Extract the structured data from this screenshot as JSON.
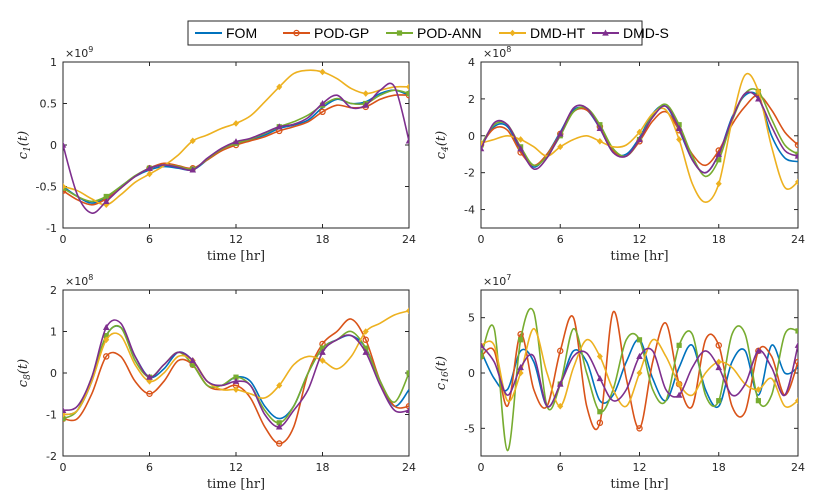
{
  "legend": {
    "entries": [
      {
        "name": "FOM",
        "color": "#0072BD",
        "marker": "none"
      },
      {
        "name": "POD-GP",
        "color": "#D95319",
        "marker": "circle"
      },
      {
        "name": "POD-ANN",
        "color": "#77AC30",
        "marker": "square"
      },
      {
        "name": "DMD-HT",
        "color": "#EDB120",
        "marker": "diamond"
      },
      {
        "name": "DMD-S",
        "color": "#7E2F8E",
        "marker": "triangle"
      }
    ]
  },
  "chart_data": [
    {
      "type": "line",
      "ylabel": "c1(t)",
      "ylabel_main": "c",
      "ylabel_sub": "1",
      "ylabel_tail": "(t)",
      "xlabel": "time [hr]",
      "exponent_base": "×10",
      "exponent_power": "9",
      "xlim": [
        0,
        24
      ],
      "ylim": [
        -1,
        1
      ],
      "xticks": [
        "0",
        "6",
        "12",
        "18",
        "24"
      ],
      "xtick_values": [
        0,
        6,
        12,
        18,
        24
      ],
      "yticks": [
        "-1",
        "-0.5",
        "0",
        "0.5",
        "1"
      ],
      "ytick_values": [
        -1,
        -0.5,
        0,
        0.5,
        1
      ],
      "x": [
        0,
        1,
        2,
        3,
        4,
        5,
        6,
        7,
        8,
        9,
        10,
        11,
        12,
        13,
        14,
        15,
        16,
        17,
        18,
        19,
        20,
        21,
        22,
        23,
        24
      ],
      "series": [
        {
          "name": "FOM",
          "values": [
            -0.5,
            -0.62,
            -0.7,
            -0.63,
            -0.5,
            -0.38,
            -0.3,
            -0.26,
            -0.28,
            -0.3,
            -0.18,
            -0.05,
            0.02,
            0.06,
            0.12,
            0.2,
            0.24,
            0.3,
            0.45,
            0.55,
            0.5,
            0.52,
            0.62,
            0.66,
            0.6
          ]
        },
        {
          "name": "POD-GP",
          "values": [
            -0.55,
            -0.66,
            -0.72,
            -0.65,
            -0.52,
            -0.38,
            -0.28,
            -0.22,
            -0.25,
            -0.28,
            -0.18,
            -0.07,
            0.0,
            0.05,
            0.1,
            0.17,
            0.22,
            0.28,
            0.4,
            0.48,
            0.45,
            0.46,
            0.55,
            0.6,
            0.6
          ]
        },
        {
          "name": "POD-ANN",
          "values": [
            -0.52,
            -0.62,
            -0.68,
            -0.62,
            -0.5,
            -0.37,
            -0.28,
            -0.24,
            -0.26,
            -0.29,
            -0.17,
            -0.05,
            0.02,
            0.07,
            0.14,
            0.22,
            0.28,
            0.36,
            0.48,
            0.56,
            0.5,
            0.5,
            0.6,
            0.66,
            0.62
          ]
        },
        {
          "name": "DMD-HT",
          "values": [
            -0.5,
            -0.55,
            -0.65,
            -0.72,
            -0.6,
            -0.45,
            -0.35,
            -0.25,
            -0.12,
            0.05,
            0.12,
            0.2,
            0.26,
            0.35,
            0.52,
            0.7,
            0.86,
            0.9,
            0.88,
            0.8,
            0.68,
            0.62,
            0.66,
            0.7,
            0.7
          ]
        },
        {
          "name": "DMD-S",
          "values": [
            0.0,
            -0.6,
            -0.82,
            -0.68,
            -0.52,
            -0.38,
            -0.28,
            -0.24,
            -0.27,
            -0.3,
            -0.16,
            -0.04,
            0.04,
            0.08,
            0.15,
            0.22,
            0.25,
            0.33,
            0.5,
            0.6,
            0.45,
            0.48,
            0.66,
            0.7,
            0.05
          ]
        }
      ]
    },
    {
      "type": "line",
      "ylabel": "c4(t)",
      "ylabel_main": "c",
      "ylabel_sub": "4",
      "ylabel_tail": "(t)",
      "xlabel": "time [hr]",
      "exponent_base": "×10",
      "exponent_power": "8",
      "xlim": [
        0,
        24
      ],
      "ylim": [
        -5,
        4
      ],
      "xticks": [
        "0",
        "6",
        "12",
        "18",
        "24"
      ],
      "xtick_values": [
        0,
        6,
        12,
        18,
        24
      ],
      "yticks": [
        "-4",
        "-2",
        "0",
        "2",
        "4"
      ],
      "ytick_values": [
        -4,
        -2,
        0,
        2,
        4
      ],
      "x": [
        0,
        1,
        2,
        3,
        4,
        5,
        6,
        7,
        8,
        9,
        10,
        11,
        12,
        13,
        14,
        15,
        16,
        17,
        18,
        19,
        20,
        21,
        22,
        23,
        24
      ],
      "series": [
        {
          "name": "FOM",
          "values": [
            -0.6,
            0.5,
            0.5,
            -0.8,
            -1.7,
            -1.0,
            0.2,
            1.4,
            1.4,
            0.4,
            -0.9,
            -1.0,
            -0.1,
            1.2,
            1.6,
            0.3,
            -1.3,
            -2.0,
            -1.0,
            1.0,
            2.2,
            2.1,
            0.0,
            -1.2,
            -1.4
          ]
        },
        {
          "name": "POD-GP",
          "values": [
            -0.5,
            0.4,
            0.3,
            -0.9,
            -1.6,
            -1.0,
            0.1,
            1.3,
            1.4,
            0.5,
            -0.8,
            -1.1,
            -0.3,
            0.8,
            1.3,
            0.3,
            -1.0,
            -1.6,
            -0.8,
            0.6,
            1.6,
            2.2,
            1.4,
            0.2,
            -0.5
          ]
        },
        {
          "name": "POD-ANN",
          "values": [
            -0.5,
            0.6,
            0.6,
            -0.6,
            -1.6,
            -1.1,
            0.0,
            1.3,
            1.5,
            0.6,
            -0.7,
            -1.1,
            -0.2,
            1.1,
            1.7,
            0.6,
            -1.1,
            -2.2,
            -1.3,
            0.8,
            2.3,
            2.4,
            0.9,
            -0.5,
            -1.0
          ]
        },
        {
          "name": "DMD-HT",
          "values": [
            -0.4,
            -0.2,
            0.0,
            -0.2,
            -0.6,
            -1.1,
            -0.6,
            -0.2,
            0.0,
            -0.3,
            -0.6,
            -0.5,
            0.2,
            1.2,
            1.4,
            -0.2,
            -2.6,
            -3.6,
            -2.6,
            0.8,
            3.3,
            2.4,
            -0.6,
            -2.8,
            -2.5
          ]
        },
        {
          "name": "DMD-S",
          "values": [
            -0.7,
            0.7,
            0.6,
            -0.7,
            -1.8,
            -1.2,
            0.1,
            1.5,
            1.5,
            0.4,
            -0.9,
            -1.1,
            -0.2,
            1.0,
            1.6,
            0.4,
            -1.3,
            -2.0,
            -1.0,
            0.9,
            2.3,
            2.0,
            0.5,
            -0.8,
            -1.1
          ]
        }
      ]
    },
    {
      "type": "line",
      "ylabel": "c8(t)",
      "ylabel_main": "c",
      "ylabel_sub": "8",
      "ylabel_tail": "(t)",
      "xlabel": "time [hr]",
      "exponent_base": "×10",
      "exponent_power": "8",
      "xlim": [
        0,
        24
      ],
      "ylim": [
        -2,
        2
      ],
      "xticks": [
        "0",
        "6",
        "12",
        "18",
        "24"
      ],
      "xtick_values": [
        0,
        6,
        12,
        18,
        24
      ],
      "yticks": [
        "-2",
        "-1",
        "0",
        "1",
        "2"
      ],
      "ytick_values": [
        -2,
        -1,
        0,
        1,
        2
      ],
      "x": [
        0,
        1,
        2,
        3,
        4,
        5,
        6,
        7,
        8,
        9,
        10,
        11,
        12,
        13,
        14,
        15,
        16,
        17,
        18,
        19,
        20,
        21,
        22,
        23,
        24
      ],
      "series": [
        {
          "name": "FOM",
          "values": [
            -1.0,
            -0.9,
            -0.2,
            0.9,
            1.1,
            0.4,
            -0.1,
            0.1,
            0.5,
            0.3,
            -0.2,
            -0.3,
            -0.1,
            -0.2,
            -0.8,
            -1.1,
            -0.8,
            0.0,
            0.6,
            0.8,
            0.9,
            0.6,
            -0.2,
            -0.8,
            -0.4
          ]
        },
        {
          "name": "POD-GP",
          "values": [
            -1.1,
            -1.1,
            -0.5,
            0.4,
            0.4,
            -0.2,
            -0.5,
            -0.2,
            0.3,
            0.2,
            -0.3,
            -0.4,
            -0.3,
            -0.6,
            -1.3,
            -1.7,
            -1.3,
            0.0,
            0.7,
            1.0,
            1.3,
            0.8,
            -0.2,
            -0.8,
            -0.8
          ]
        },
        {
          "name": "POD-ANN",
          "values": [
            -1.1,
            -0.9,
            -0.1,
            0.9,
            1.1,
            0.3,
            -0.1,
            0.2,
            0.5,
            0.2,
            -0.3,
            -0.3,
            -0.1,
            -0.3,
            -0.9,
            -1.2,
            -0.8,
            0.0,
            0.6,
            0.8,
            1.0,
            0.6,
            -0.2,
            -0.7,
            0.0
          ]
        },
        {
          "name": "DMD-HT",
          "values": [
            -1.0,
            -0.9,
            -0.2,
            0.8,
            0.9,
            0.2,
            -0.2,
            0.0,
            0.4,
            0.3,
            -0.2,
            -0.4,
            -0.4,
            -0.5,
            -0.6,
            -0.3,
            0.2,
            0.4,
            0.3,
            0.1,
            0.4,
            1.0,
            1.2,
            1.4,
            1.5
          ]
        },
        {
          "name": "DMD-S",
          "values": [
            -0.9,
            -0.8,
            -0.1,
            1.1,
            1.2,
            0.4,
            -0.1,
            0.2,
            0.5,
            0.3,
            -0.2,
            -0.3,
            -0.2,
            -0.3,
            -1.0,
            -1.3,
            -0.9,
            -0.4,
            0.5,
            0.8,
            0.9,
            0.5,
            -0.3,
            -0.9,
            -0.9
          ]
        }
      ]
    },
    {
      "type": "line",
      "ylabel": "c16(t)",
      "ylabel_main": "c",
      "ylabel_sub": "16",
      "ylabel_tail": "(t)",
      "xlabel": "time [hr]",
      "exponent_base": "×10",
      "exponent_power": "7",
      "xlim": [
        0,
        24
      ],
      "ylim": [
        -7.5,
        7.5
      ],
      "xticks": [
        "0",
        "6",
        "12",
        "18",
        "24"
      ],
      "xtick_values": [
        0,
        6,
        12,
        18,
        24
      ],
      "yticks": [
        "-5",
        "0",
        "5"
      ],
      "ytick_values": [
        -5,
        0,
        5
      ],
      "x": [
        0,
        1,
        2,
        3,
        4,
        5,
        6,
        7,
        8,
        9,
        10,
        11,
        12,
        13,
        14,
        15,
        16,
        17,
        18,
        19,
        20,
        21,
        22,
        23,
        24
      ],
      "series": [
        {
          "name": "FOM",
          "values": [
            2.0,
            -0.5,
            -1.5,
            2.0,
            1.0,
            -3.0,
            -1.0,
            2.0,
            1.0,
            -2.5,
            -2.0,
            1.0,
            3.0,
            -0.5,
            -2.5,
            0.5,
            2.5,
            -1.5,
            -3.0,
            1.0,
            2.0,
            -2.0,
            2.5,
            0.0,
            0.5
          ]
        },
        {
          "name": "POD-GP",
          "values": [
            1.5,
            2.0,
            -3.0,
            3.5,
            -1.5,
            -3.0,
            2.0,
            5.0,
            -3.0,
            -4.5,
            5.5,
            -0.5,
            -5.0,
            1.0,
            4.5,
            -1.0,
            -3.0,
            3.0,
            2.5,
            -3.0,
            -3.5,
            2.0,
            1.5,
            -2.0,
            1.0
          ]
        },
        {
          "name": "POD-ANN",
          "values": [
            1.5,
            4.0,
            -7.0,
            3.0,
            5.5,
            -3.0,
            -1.0,
            4.0,
            0.0,
            -3.5,
            -1.5,
            3.0,
            3.0,
            -1.5,
            -2.5,
            2.5,
            3.5,
            -2.0,
            -2.5,
            3.5,
            3.5,
            -2.5,
            -2.0,
            3.5,
            3.8
          ]
        },
        {
          "name": "DMD-HT",
          "values": [
            2.5,
            2.5,
            -2.5,
            0.0,
            4.0,
            0.0,
            -3.0,
            0.5,
            3.0,
            1.5,
            -1.5,
            -3.0,
            0.0,
            3.0,
            1.5,
            -1.0,
            -2.0,
            0.0,
            1.0,
            0.5,
            -1.0,
            -1.5,
            -0.5,
            -3.0,
            -2.5
          ]
        },
        {
          "name": "DMD-S",
          "values": [
            2.5,
            1.0,
            -2.0,
            0.5,
            1.5,
            -3.0,
            -1.0,
            1.5,
            1.8,
            -0.5,
            -2.5,
            -1.5,
            1.5,
            2.0,
            -1.5,
            -2.0,
            0.5,
            2.0,
            0.5,
            -2.0,
            -1.0,
            2.0,
            0.5,
            -2.0,
            2.5
          ]
        }
      ]
    }
  ]
}
